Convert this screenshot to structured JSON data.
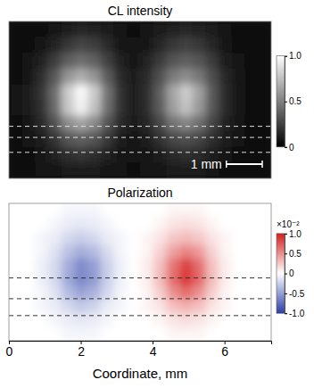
{
  "chart_data": [
    {
      "type": "heatmap",
      "title": "CL intensity",
      "tick_labels": false,
      "xlim": [
        0,
        7.3
      ],
      "ylim": [
        0,
        4.1
      ],
      "cells": [
        [
          0.05,
          0.05,
          0.06,
          0.08,
          0.12,
          0.15,
          0.14,
          0.1,
          0.07,
          0.06,
          0.07,
          0.1,
          0.13,
          0.15,
          0.13,
          0.1,
          0.07,
          0.05,
          0.05,
          0.05
        ],
        [
          0.05,
          0.06,
          0.09,
          0.14,
          0.22,
          0.27,
          0.24,
          0.16,
          0.09,
          0.07,
          0.09,
          0.15,
          0.22,
          0.25,
          0.22,
          0.15,
          0.09,
          0.06,
          0.05,
          0.05
        ],
        [
          0.06,
          0.08,
          0.13,
          0.24,
          0.37,
          0.43,
          0.38,
          0.25,
          0.13,
          0.09,
          0.13,
          0.23,
          0.33,
          0.37,
          0.33,
          0.23,
          0.12,
          0.07,
          0.05,
          0.05
        ],
        [
          0.06,
          0.09,
          0.18,
          0.35,
          0.58,
          0.68,
          0.58,
          0.36,
          0.17,
          0.11,
          0.16,
          0.31,
          0.48,
          0.55,
          0.47,
          0.3,
          0.15,
          0.08,
          0.06,
          0.05
        ],
        [
          0.07,
          0.1,
          0.21,
          0.43,
          0.8,
          0.98,
          0.8,
          0.45,
          0.2,
          0.12,
          0.18,
          0.37,
          0.65,
          0.8,
          0.63,
          0.35,
          0.17,
          0.09,
          0.06,
          0.05
        ],
        [
          0.07,
          0.1,
          0.2,
          0.42,
          0.78,
          0.95,
          0.76,
          0.43,
          0.19,
          0.12,
          0.18,
          0.36,
          0.62,
          0.76,
          0.6,
          0.34,
          0.16,
          0.08,
          0.06,
          0.05
        ],
        [
          0.06,
          0.09,
          0.16,
          0.32,
          0.55,
          0.64,
          0.54,
          0.33,
          0.16,
          0.1,
          0.15,
          0.28,
          0.45,
          0.52,
          0.44,
          0.27,
          0.14,
          0.08,
          0.05,
          0.05
        ],
        [
          0.06,
          0.08,
          0.12,
          0.21,
          0.33,
          0.38,
          0.33,
          0.22,
          0.12,
          0.09,
          0.12,
          0.19,
          0.28,
          0.31,
          0.27,
          0.18,
          0.11,
          0.07,
          0.05,
          0.05
        ],
        [
          0.05,
          0.06,
          0.09,
          0.13,
          0.18,
          0.21,
          0.18,
          0.13,
          0.09,
          0.07,
          0.09,
          0.12,
          0.16,
          0.18,
          0.16,
          0.12,
          0.08,
          0.06,
          0.05,
          0.05
        ],
        [
          0.05,
          0.05,
          0.07,
          0.08,
          0.1,
          0.11,
          0.1,
          0.08,
          0.07,
          0.06,
          0.07,
          0.08,
          0.1,
          0.11,
          0.1,
          0.08,
          0.06,
          0.05,
          0.05,
          0.05
        ]
      ],
      "colorbar": {
        "range": [
          0,
          1
        ],
        "colors": [
          "#000000",
          "#ffffff"
        ],
        "ticks": [
          0,
          0.5,
          {
            "value": 1,
            "label": "1.0"
          }
        ]
      },
      "dashed_lines": [
        1.36,
        1.07,
        0.68
      ],
      "scale_bar": {
        "length": 1,
        "label": "1 mm"
      }
    },
    {
      "type": "heatmap",
      "title": "Polarization",
      "tick_labels": "x",
      "xlim": [
        0,
        7.3
      ],
      "ylim": [
        0,
        3.5
      ],
      "xticks": [
        0,
        2,
        4,
        6
      ],
      "xlabel": "Coordinate, mm",
      "cells": [
        [
          0,
          0,
          0,
          0,
          -0.05,
          -0.05,
          -0.05,
          0,
          0,
          0,
          0,
          0,
          0.05,
          0.05,
          0.05,
          0,
          0,
          0,
          0,
          0
        ],
        [
          0,
          0,
          0,
          -0.05,
          -0.1,
          -0.12,
          -0.1,
          -0.05,
          0,
          0,
          0,
          0.05,
          0.12,
          0.15,
          0.12,
          0.05,
          0,
          0,
          0,
          0
        ],
        [
          0,
          0,
          -0.05,
          -0.1,
          -0.2,
          -0.25,
          -0.2,
          -0.1,
          -0.05,
          0,
          0.05,
          0.12,
          0.25,
          0.3,
          0.25,
          0.12,
          0.05,
          0,
          0,
          0
        ],
        [
          0,
          0,
          -0.05,
          -0.15,
          -0.32,
          -0.42,
          -0.35,
          -0.18,
          -0.05,
          0,
          0.05,
          0.2,
          0.42,
          0.55,
          0.45,
          0.2,
          0.05,
          0,
          0,
          0
        ],
        [
          0,
          0,
          -0.08,
          -0.2,
          -0.42,
          -0.6,
          -0.5,
          -0.25,
          -0.08,
          0,
          0.08,
          0.28,
          0.62,
          0.85,
          0.65,
          0.28,
          0.08,
          0,
          0,
          0
        ],
        [
          0,
          0,
          -0.08,
          -0.2,
          -0.45,
          -0.62,
          -0.52,
          -0.25,
          -0.08,
          0,
          0.08,
          0.3,
          0.65,
          0.9,
          0.68,
          0.3,
          0.08,
          0,
          0,
          0
        ],
        [
          0,
          0,
          -0.05,
          -0.15,
          -0.35,
          -0.48,
          -0.4,
          -0.2,
          -0.05,
          0,
          0.05,
          0.22,
          0.5,
          0.65,
          0.5,
          0.22,
          0.05,
          0,
          0,
          0
        ],
        [
          0,
          0,
          -0.05,
          -0.1,
          -0.2,
          -0.28,
          -0.22,
          -0.1,
          -0.05,
          0,
          0.05,
          0.12,
          0.28,
          0.35,
          0.28,
          0.12,
          0.05,
          0,
          0,
          0
        ],
        [
          0,
          0,
          0,
          -0.05,
          -0.1,
          -0.12,
          -0.1,
          -0.05,
          0,
          0,
          0,
          0.05,
          0.12,
          0.15,
          0.12,
          0.05,
          0,
          0,
          0,
          0
        ],
        [
          0,
          0,
          0,
          0,
          -0.05,
          -0.05,
          -0.05,
          0,
          0,
          0,
          0,
          0,
          0.05,
          0.05,
          0.05,
          0,
          0,
          0,
          0,
          0
        ]
      ],
      "colorbar": {
        "range": [
          -1,
          1
        ],
        "colors": [
          "#2a3fa8",
          "#ffffff",
          "#d61f1f"
        ],
        "multiplier_label": "×10⁻²",
        "ticks": [
          {
            "value": 1,
            "label": "1.0"
          },
          0.5,
          0,
          -0.5,
          {
            "value": -1,
            "label": "-1.0"
          }
        ]
      },
      "dashed_lines": [
        1.6,
        1.07,
        0.64
      ]
    }
  ]
}
